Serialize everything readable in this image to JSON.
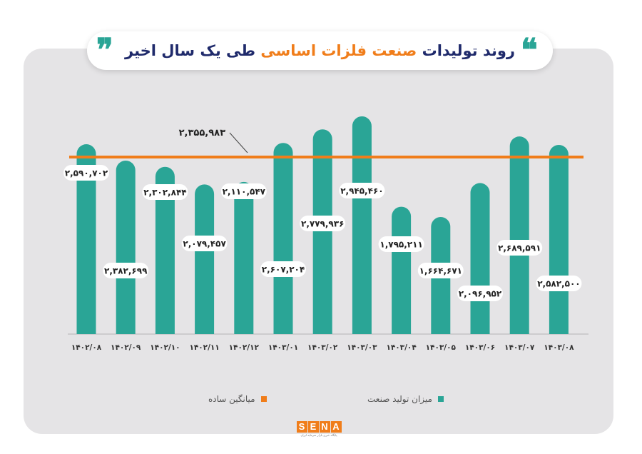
{
  "title": {
    "part1": "روند تولیدات",
    "highlight": "صنعت فلزات اساسی",
    "part2": "طی یک سال اخیر",
    "quote_open": "❞",
    "quote_close": "❝"
  },
  "chart_data": {
    "type": "bar",
    "categories": [
      "۱۴۰۲/۰۸",
      "۱۴۰۲/۰۹",
      "۱۴۰۲/۱۰",
      "۱۴۰۲/۱۱",
      "۱۴۰۲/۱۲",
      "۱۴۰۳/۰۱",
      "۱۴۰۳/۰۲",
      "۱۴۰۳/۰۳",
      "۱۴۰۳/۰۴",
      "۱۴۰۳/۰۵",
      "۱۴۰۳/۰۶",
      "۱۴۰۳/۰۷",
      "۱۴۰۳/۰۸"
    ],
    "series": [
      {
        "name": "میزان تولید صنعت",
        "color": "#2aa596",
        "values": [
          2590702,
          2382699,
          2302844,
          2079457,
          2110547,
          2607204,
          2779936,
          2945460,
          1795211,
          1664671,
          2096952,
          2689591,
          2582500
        ],
        "labels": [
          "۲,۵۹۰,۷۰۲",
          "۲,۳۸۲,۶۹۹",
          "۲,۳۰۲,۸۴۴",
          "۲,۰۷۹,۴۵۷",
          "۲,۱۱۰,۵۴۷",
          "۲,۶۰۷,۲۰۴",
          "۲,۷۷۹,۹۳۶",
          "۲,۹۴۵,۴۶۰",
          "۱,۷۹۵,۲۱۱",
          "۱,۶۶۴,۶۷۱",
          "۲,۰۹۶,۹۵۲",
          "۲,۶۸۹,۵۹۱",
          "۲,۵۸۲,۵۰۰"
        ]
      }
    ],
    "average": {
      "name": "میانگین ساده",
      "value": 2355983,
      "label": "۲,۳۵۵,۹۸۳",
      "color": "#f07d1a"
    }
  },
  "legend": [
    {
      "label": "میزان تولید صنعت",
      "color": "#2aa596"
    },
    {
      "label": "میانگین ساده",
      "color": "#f07d1a"
    }
  ],
  "logo": {
    "text": "SENA",
    "subtext": "پایگاه خبری بازار سرمایه ایران"
  }
}
